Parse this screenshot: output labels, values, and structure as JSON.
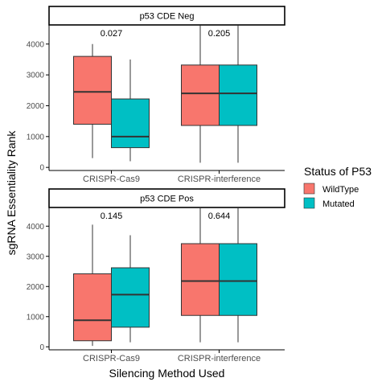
{
  "chart_data": {
    "type": "boxplot",
    "x_axis_title": "Silencing Method Used",
    "y_axis_title": "sgRNA Essentiality Rank",
    "categories": [
      "CRISPR-Cas9",
      "CRISPR-interference"
    ],
    "y_ticks": [
      0,
      1000,
      2000,
      3000,
      4000
    ],
    "ylim": [
      -100,
      4620
    ],
    "legend": {
      "title": "Status of P53",
      "entries": [
        {
          "name": "WildType",
          "color": "#F8766D"
        },
        {
          "name": "Mutated",
          "color": "#00BFC4"
        }
      ]
    },
    "panels": [
      {
        "strip": "p53 CDE Neg",
        "pvalues": [
          "0.027",
          "0.205"
        ],
        "groups": [
          {
            "category": "CRISPR-Cas9",
            "status": "WildType",
            "min": 300,
            "q1": 1400,
            "median": 2450,
            "q3": 3600,
            "max": 4000
          },
          {
            "category": "CRISPR-Cas9",
            "status": "Mutated",
            "min": 200,
            "q1": 640,
            "median": 1000,
            "q3": 2220,
            "max": 3500
          },
          {
            "category": "CRISPR-interference",
            "status": "WildType",
            "min": 150,
            "q1": 1360,
            "median": 2400,
            "q3": 3320,
            "max": 4600
          },
          {
            "category": "CRISPR-interference",
            "status": "Mutated",
            "min": 150,
            "q1": 1360,
            "median": 2400,
            "q3": 3320,
            "max": 4600
          }
        ]
      },
      {
        "strip": "p53 CDE Pos",
        "pvalues": [
          "0.145",
          "0.644"
        ],
        "groups": [
          {
            "category": "CRISPR-Cas9",
            "status": "WildType",
            "min": 30,
            "q1": 200,
            "median": 880,
            "q3": 2420,
            "max": 4050
          },
          {
            "category": "CRISPR-Cas9",
            "status": "Mutated",
            "min": 150,
            "q1": 650,
            "median": 1730,
            "q3": 2620,
            "max": 3700
          },
          {
            "category": "CRISPR-interference",
            "status": "WildType",
            "min": 150,
            "q1": 1040,
            "median": 2180,
            "q3": 3420,
            "max": 4620
          },
          {
            "category": "CRISPR-interference",
            "status": "Mutated",
            "min": 150,
            "q1": 1040,
            "median": 2180,
            "q3": 3420,
            "max": 4620
          }
        ]
      }
    ]
  }
}
